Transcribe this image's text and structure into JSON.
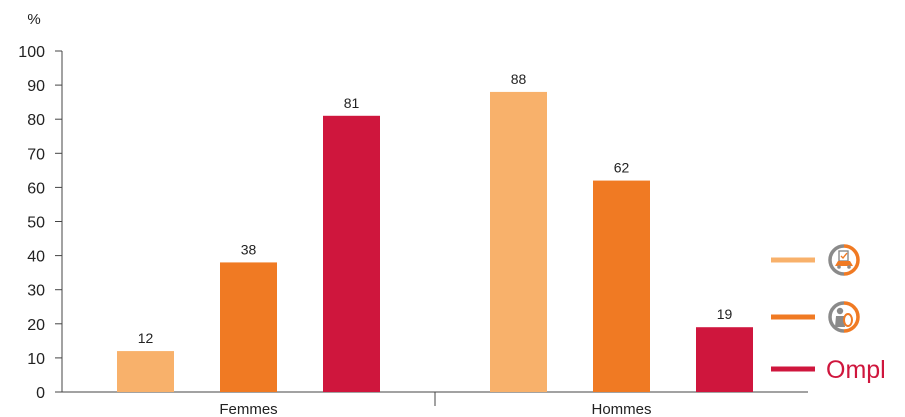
{
  "chart_data": {
    "type": "bar",
    "unit_label": "%",
    "categories": [
      "Femmes",
      "Hommes"
    ],
    "series": [
      {
        "legend_icon": "car-inspection-icon",
        "color": "#f8b16b",
        "values": [
          12,
          88
        ]
      },
      {
        "legend_icon": "mechanic-wheel-icon",
        "color": "#f07a23",
        "values": [
          38,
          62
        ]
      },
      {
        "name": "Ompl",
        "color": "#cf163d",
        "values": [
          81,
          19
        ]
      }
    ],
    "yticks": [
      0,
      10,
      20,
      30,
      40,
      50,
      60,
      70,
      80,
      90,
      100
    ],
    "ylim": [
      0,
      100
    ],
    "grid": false,
    "legend_position": "right"
  }
}
